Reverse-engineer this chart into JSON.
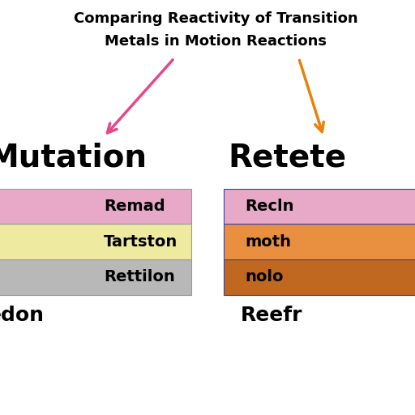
{
  "title_line1": "Comparing Reactivity of Transition",
  "title_line2": "Metals in Motion Reactions",
  "left_heading": "Mutation",
  "right_heading": "Retete",
  "left_sublabel": "edon",
  "right_sublabel": "Reefr",
  "left_arrow_color": "#E8478A",
  "right_arrow_color": "#E8820A",
  "left_sections": [
    {
      "label": "Remad",
      "color": "#E8A8C8"
    },
    {
      "label": "Tartston",
      "color": "#EEEAA0"
    },
    {
      "label": "Rettilon",
      "color": "#B8B8B8"
    }
  ],
  "right_sections": [
    {
      "label": "Recln",
      "color": "#E8A8C8"
    },
    {
      "label": "moth",
      "color": "#E89040"
    },
    {
      "label": "nolo",
      "color": "#C06820"
    }
  ],
  "bg_color": "#FFFFFF",
  "title_fontsize": 13,
  "section_fontsize": 14,
  "heading_fontsize": 28,
  "sublabel_fontsize": 18
}
